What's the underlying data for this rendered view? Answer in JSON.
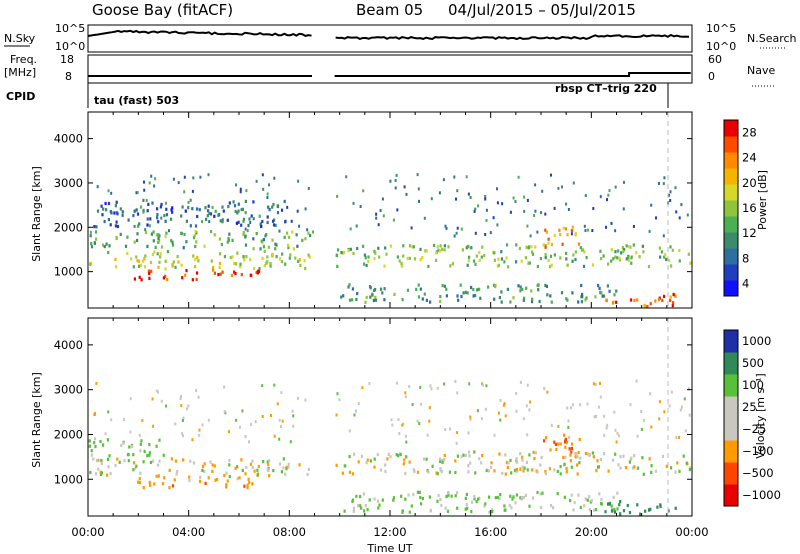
{
  "header": {
    "site": "Goose Bay (fitACF)",
    "beam": "Beam 05",
    "date_range": "04/Jul/2015 – 05/Jul/2015"
  },
  "strip": {
    "nsky_label": "N.Sky",
    "nsky_ticks": [
      "10^5",
      "10^0"
    ],
    "nsearch_label": "N.Search",
    "nsearch_ticks": [
      "10^5",
      "10^0"
    ],
    "freq_label": "Freq.",
    "freq_unit": "[MHz]",
    "freq_ticks": [
      "18",
      "8"
    ],
    "nave_label": "Nave",
    "nave_ticks": [
      "60",
      "0"
    ],
    "cpid_label": "CPID",
    "cpid_left": "tau (fast) 503",
    "cpid_right": "rbsp CT–trig 220"
  },
  "panels": {
    "power": {
      "ylabel": "Slant Range [km]",
      "cbar_label": "Power [dB]",
      "cbar_ticks": [
        "28",
        "24",
        "20",
        "16",
        "12",
        "8",
        "4"
      ]
    },
    "velocity": {
      "ylabel": "Slant Range [km]",
      "cbar_label": "Velocity [m s⁻¹]",
      "cbar_ticks": [
        "1000",
        "500",
        "100",
        "25",
        "−25",
        "−100",
        "−500",
        "−1000"
      ]
    }
  },
  "axes": {
    "xlabel": "Time UT",
    "xticks": [
      "00:00",
      "04:00",
      "08:00",
      "12:00",
      "16:00",
      "20:00",
      "00:00"
    ],
    "yticks": [
      "1000",
      "2000",
      "3000",
      "4000"
    ]
  },
  "chart_data": [
    {
      "type": "heatmap",
      "title": "Power",
      "xlabel": "Time UT",
      "ylabel": "Slant Range [km]",
      "xlim_hours": [
        0,
        24
      ],
      "ylim_km": [
        180,
        4600
      ],
      "color_scale_dB": [
        0,
        30
      ],
      "data_gap_hours": [
        8.9,
        9.8
      ],
      "regions": [
        {
          "t_start": 0.0,
          "t_end": 8.8,
          "r_min": 1050,
          "r_max": 1450,
          "value_dB": 16
        },
        {
          "t_start": 1.8,
          "t_end": 6.8,
          "r_min": 800,
          "r_max": 1050,
          "value_dB": 28
        },
        {
          "t_start": 0.0,
          "t_end": 8.8,
          "r_min": 1500,
          "r_max": 1900,
          "value_dB": 12
        },
        {
          "t_start": 0.2,
          "t_end": 8.0,
          "r_min": 2000,
          "r_max": 2600,
          "value_dB": 6
        },
        {
          "t_start": 9.8,
          "t_end": 23.9,
          "r_min": 1100,
          "r_max": 1600,
          "value_dB": 14
        },
        {
          "t_start": 9.8,
          "t_end": 21.0,
          "r_min": 300,
          "r_max": 700,
          "value_dB": 10
        },
        {
          "t_start": 20.5,
          "t_end": 23.6,
          "r_min": 200,
          "r_max": 500,
          "value_dB": 26
        },
        {
          "t_start": 18.0,
          "t_end": 19.5,
          "r_min": 1500,
          "r_max": 2000,
          "value_dB": 22
        }
      ]
    },
    {
      "type": "heatmap",
      "title": "Velocity",
      "xlabel": "Time UT",
      "ylabel": "Slant Range [km]",
      "xlim_hours": [
        0,
        24
      ],
      "ylim_km": [
        180,
        4600
      ],
      "color_scale_ms": [
        -1000,
        1000
      ],
      "data_gap_hours": [
        8.9,
        9.8
      ],
      "regions": [
        {
          "t_start": 0.0,
          "t_end": 8.8,
          "r_min": 1050,
          "r_max": 1450,
          "value_ms": 0
        },
        {
          "t_start": 1.8,
          "t_end": 6.8,
          "r_min": 800,
          "r_max": 1050,
          "value_ms": -200
        },
        {
          "t_start": 0.0,
          "t_end": 3.0,
          "r_min": 1500,
          "r_max": 1900,
          "value_ms": 150
        },
        {
          "t_start": 9.8,
          "t_end": 23.9,
          "r_min": 1100,
          "r_max": 1600,
          "value_ms": 0
        },
        {
          "t_start": 9.8,
          "t_end": 21.0,
          "r_min": 250,
          "r_max": 700,
          "value_ms": 80
        },
        {
          "t_start": 20.5,
          "t_end": 23.6,
          "r_min": 200,
          "r_max": 500,
          "value_ms": 600
        },
        {
          "t_start": 18.0,
          "t_end": 19.5,
          "r_min": 1500,
          "r_max": 2000,
          "value_ms": -300
        }
      ]
    }
  ]
}
